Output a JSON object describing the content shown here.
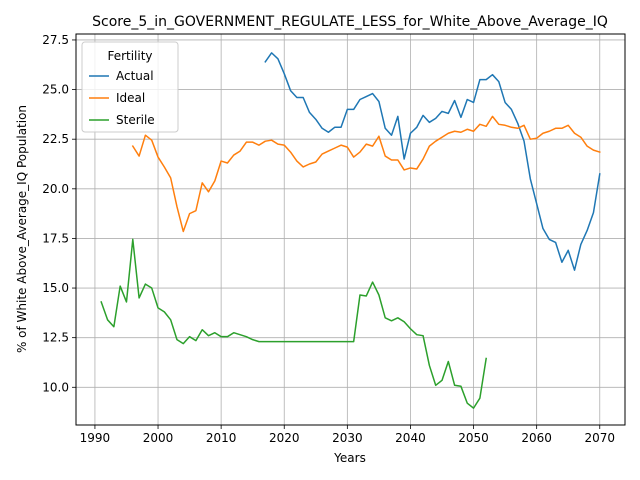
{
  "chart_data": {
    "type": "line",
    "title": "Score_5_in_GOVERNMENT_REGULATE_LESS_for_White_Above_Average_IQ",
    "xlabel": "Years",
    "ylabel": "% of White Above_Average_IQ Population",
    "xlim": [
      1987,
      2074
    ],
    "ylim": [
      8.1,
      27.8
    ],
    "xticks": [
      1990,
      2000,
      2010,
      2020,
      2030,
      2040,
      2050,
      2060,
      2070
    ],
    "yticks": [
      10.0,
      12.5,
      15.0,
      17.5,
      20.0,
      22.5,
      25.0,
      27.5
    ],
    "grid": true,
    "legend": {
      "title": "Fertility",
      "position": "top-left"
    },
    "series": [
      {
        "name": "Actual",
        "color": "#1f77b4",
        "x": [
          2017,
          2018,
          2019,
          2020,
          2021,
          2022,
          2023,
          2024,
          2025,
          2026,
          2027,
          2028,
          2029,
          2030,
          2031,
          2032,
          2033,
          2034,
          2035,
          2036,
          2037,
          2038,
          2039,
          2040,
          2041,
          2042,
          2043,
          2044,
          2045,
          2046,
          2047,
          2048,
          2049,
          2050,
          2051,
          2052,
          2053,
          2054,
          2055,
          2056,
          2057,
          2058,
          2059,
          2060,
          2061,
          2062,
          2063,
          2064,
          2065,
          2066,
          2067,
          2068,
          2069,
          2070
        ],
        "y": [
          26.4,
          26.85,
          26.55,
          25.8,
          24.95,
          24.6,
          24.6,
          23.85,
          23.5,
          23.05,
          22.85,
          23.1,
          23.1,
          24.0,
          24.0,
          24.5,
          24.65,
          24.8,
          24.4,
          23.05,
          22.7,
          23.65,
          21.5,
          22.8,
          23.1,
          23.7,
          23.35,
          23.55,
          23.9,
          23.8,
          24.45,
          23.6,
          24.5,
          24.35,
          25.5,
          25.5,
          25.75,
          25.4,
          24.35,
          24.0,
          23.3,
          22.4,
          20.5,
          19.25,
          18.0,
          17.45,
          17.3,
          16.3,
          16.9,
          15.9,
          17.2,
          17.9,
          18.8,
          20.75
        ]
      },
      {
        "name": "Ideal",
        "color": "#ff7f0e",
        "x": [
          1996,
          1997,
          1998,
          1999,
          2000,
          2001,
          2002,
          2003,
          2004,
          2005,
          2006,
          2007,
          2008,
          2009,
          2010,
          2011,
          2012,
          2013,
          2014,
          2015,
          2016,
          2017,
          2018,
          2019,
          2020,
          2021,
          2022,
          2023,
          2024,
          2025,
          2026,
          2027,
          2028,
          2029,
          2030,
          2031,
          2032,
          2033,
          2034,
          2035,
          2036,
          2037,
          2038,
          2039,
          2040,
          2041,
          2042,
          2043,
          2044,
          2045,
          2046,
          2047,
          2048,
          2049,
          2050,
          2051,
          2052,
          2053,
          2054,
          2055,
          2056,
          2057,
          2058,
          2059,
          2060,
          2061,
          2062,
          2063,
          2064,
          2065,
          2066,
          2067,
          2068,
          2069,
          2070
        ],
        "y": [
          22.15,
          21.65,
          22.7,
          22.45,
          21.6,
          21.1,
          20.55,
          19.1,
          17.85,
          18.75,
          18.9,
          20.3,
          19.85,
          20.4,
          21.4,
          21.3,
          21.7,
          21.9,
          22.35,
          22.35,
          22.2,
          22.4,
          22.45,
          22.25,
          22.2,
          21.85,
          21.4,
          21.1,
          21.25,
          21.35,
          21.75,
          21.9,
          22.05,
          22.2,
          22.1,
          21.6,
          21.85,
          22.25,
          22.15,
          22.65,
          21.65,
          21.45,
          21.45,
          20.95,
          21.05,
          21.0,
          21.5,
          22.15,
          22.4,
          22.6,
          22.8,
          22.9,
          22.85,
          23.0,
          22.9,
          23.25,
          23.15,
          23.65,
          23.25,
          23.2,
          23.1,
          23.05,
          23.2,
          22.5,
          22.55,
          22.8,
          22.9,
          23.05,
          23.05,
          23.2,
          22.8,
          22.6,
          22.15,
          21.95,
          21.85
        ]
      },
      {
        "name": "Sterile",
        "color": "#2ca02c",
        "x": [
          1991,
          1992,
          1993,
          1994,
          1995,
          1996,
          1997,
          1998,
          1999,
          2000,
          2001,
          2002,
          2003,
          2004,
          2005,
          2006,
          2007,
          2008,
          2009,
          2010,
          2011,
          2012,
          2013,
          2014,
          2015,
          2016,
          2017,
          2018,
          2019,
          2020,
          2021,
          2022,
          2023,
          2024,
          2025,
          2026,
          2027,
          2028,
          2029,
          2030,
          2031,
          2032,
          2033,
          2034,
          2035,
          2036,
          2037,
          2038,
          2039,
          2040,
          2041,
          2042,
          2043,
          2044,
          2045,
          2046,
          2047,
          2048,
          2049,
          2050,
          2051,
          2052
        ],
        "y": [
          14.3,
          13.4,
          13.05,
          15.1,
          14.3,
          17.45,
          14.5,
          15.2,
          15.0,
          14.0,
          13.8,
          13.4,
          12.4,
          12.2,
          12.55,
          12.35,
          12.9,
          12.6,
          12.75,
          12.55,
          12.55,
          12.75,
          12.65,
          12.55,
          12.4,
          12.3,
          12.3,
          12.3,
          12.3,
          12.3,
          12.3,
          12.3,
          12.3,
          12.3,
          12.3,
          12.3,
          12.3,
          12.3,
          12.3,
          12.3,
          12.3,
          14.65,
          14.6,
          15.3,
          14.65,
          13.5,
          13.35,
          13.5,
          13.3,
          12.95,
          12.65,
          12.6,
          11.1,
          10.1,
          10.35,
          11.3,
          10.1,
          10.05,
          9.2,
          8.95,
          9.45,
          11.45
        ]
      }
    ]
  }
}
